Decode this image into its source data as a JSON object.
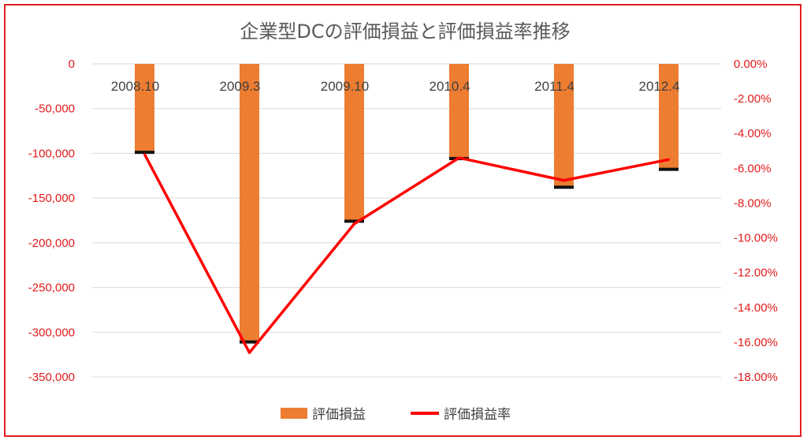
{
  "chart_data": {
    "type": "bar",
    "title": "企業型DCの評価損益と評価損益率推移",
    "categories": [
      "2008.10",
      "2009.3",
      "2009.10",
      "2010.4",
      "2011.4",
      "2012.4"
    ],
    "series": [
      {
        "name": "評価損益",
        "type": "bar",
        "axis": "left",
        "color": "#ed7d31",
        "values": [
          -98000,
          -310000,
          -175000,
          -105000,
          -137000,
          -117000
        ]
      },
      {
        "name": "評価損益率",
        "type": "line",
        "axis": "right",
        "color": "#ff0000",
        "values": [
          -5.2,
          -16.6,
          -9.2,
          -5.4,
          -6.7,
          -5.5
        ]
      }
    ],
    "y_left": {
      "ylim": [
        -350000,
        0
      ],
      "ticks": [
        0,
        -50000,
        -100000,
        -150000,
        -200000,
        -250000,
        -300000,
        -350000
      ],
      "tick_labels": [
        "0",
        "-50,000",
        "-100,000",
        "-150,000",
        "-200,000",
        "-250,000",
        "-300,000",
        "-350,000"
      ]
    },
    "y_right": {
      "ylim": [
        -18,
        0
      ],
      "ticks": [
        0,
        -2,
        -4,
        -6,
        -8,
        -10,
        -12,
        -14,
        -16,
        -18
      ],
      "tick_labels": [
        "0.00%",
        "-2.00%",
        "-4.00%",
        "-6.00%",
        "-8.00%",
        "-10.00%",
        "-12.00%",
        "-14.00%",
        "-16.00%",
        "-18.00%"
      ]
    },
    "grid": true,
    "legend_position": "bottom",
    "colors": {
      "border": "#e02020",
      "tick_text": "#e31a1a",
      "title_text": "#595959"
    }
  }
}
